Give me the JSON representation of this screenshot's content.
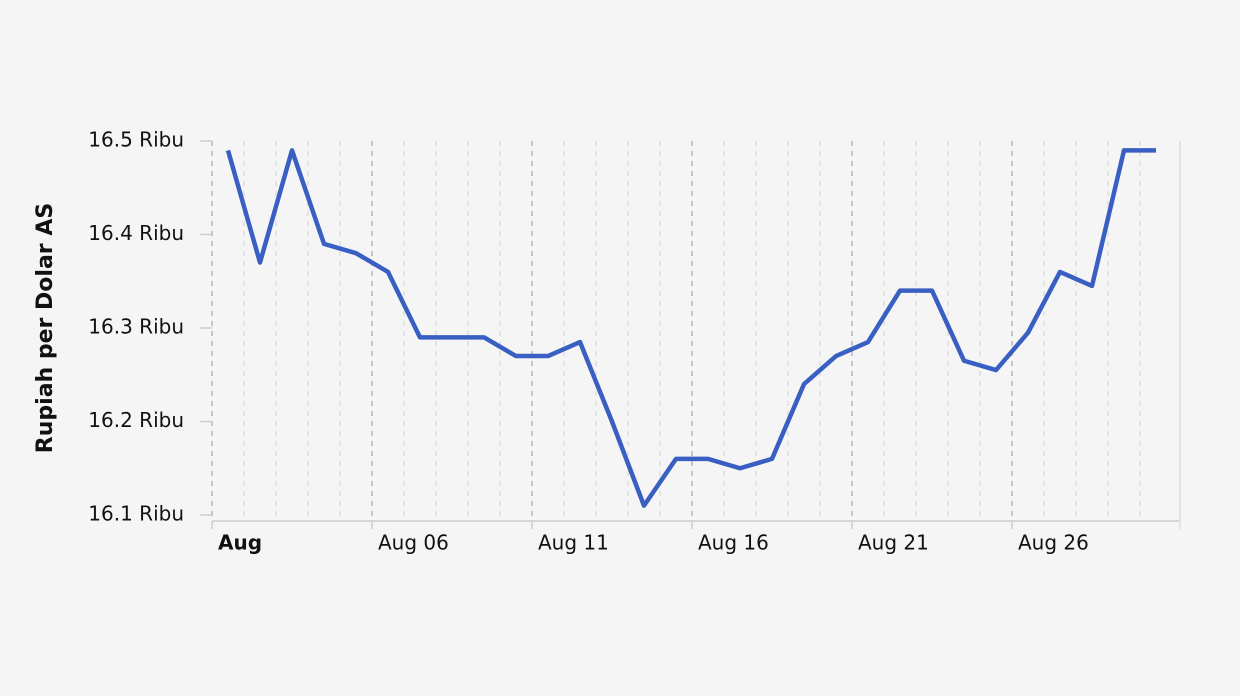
{
  "chart_data": {
    "type": "line",
    "y_label": "Rupiah per Dolar AS",
    "x": [
      "Aug 01",
      "Aug 02",
      "Aug 03",
      "Aug 04",
      "Aug 05",
      "Aug 06",
      "Aug 07",
      "Aug 08",
      "Aug 09",
      "Aug 10",
      "Aug 11",
      "Aug 12",
      "Aug 13",
      "Aug 14",
      "Aug 15",
      "Aug 16",
      "Aug 17",
      "Aug 18",
      "Aug 19",
      "Aug 20",
      "Aug 21",
      "Aug 22",
      "Aug 23",
      "Aug 24",
      "Aug 25",
      "Aug 26",
      "Aug 27",
      "Aug 28",
      "Aug 29",
      "Aug 30"
    ],
    "series": [
      {
        "color": "#3a5fc3",
        "values": [
          16.49,
          16.37,
          16.49,
          16.39,
          16.38,
          16.36,
          16.29,
          16.29,
          16.29,
          16.27,
          16.27,
          16.285,
          16.2,
          16.11,
          16.16,
          16.16,
          16.15,
          16.16,
          16.24,
          16.27,
          16.285,
          16.34,
          16.34,
          16.265,
          16.255,
          16.295,
          16.36,
          16.345,
          16.49,
          16.49
        ]
      }
    ],
    "ylim": [
      16.1,
      16.5
    ],
    "yticks": [
      {
        "value": 16.1,
        "label": "16.1 Ribu"
      },
      {
        "value": 16.2,
        "label": "16.2 Ribu"
      },
      {
        "value": 16.3,
        "label": "16.3 Ribu"
      },
      {
        "value": 16.4,
        "label": "16.4 Ribu"
      },
      {
        "value": 16.5,
        "label": "16.5 Ribu"
      }
    ],
    "xticks": [
      {
        "value": "Aug 01",
        "label": "Aug"
      },
      "Aug 06",
      "Aug 11",
      "Aug 16",
      "Aug 21",
      "Aug 26"
    ],
    "grid": true
  }
}
